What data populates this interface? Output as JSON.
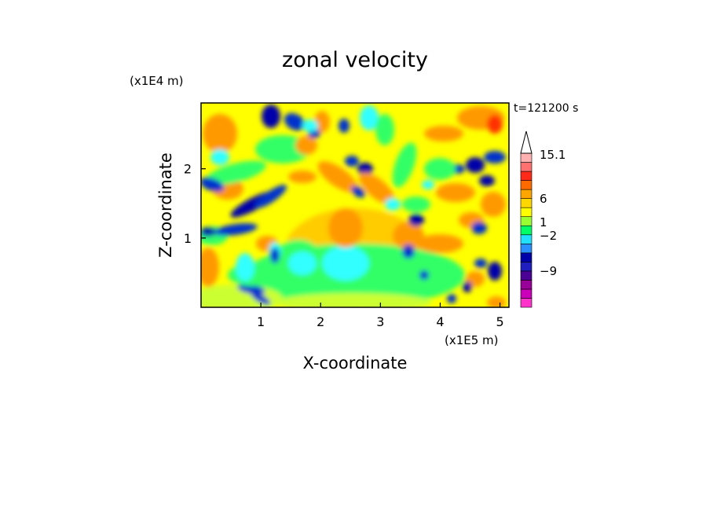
{
  "chart_data": {
    "type": "heatmap",
    "title": "zonal velocity",
    "xlabel": "X-coordinate",
    "ylabel": "Z-coordinate",
    "x_unit": "(x1E5 m)",
    "y_unit": "(x1E4 m)",
    "time_label": "t=121200 s",
    "x_ticks": [
      "1",
      "2",
      "3",
      "4",
      "5"
    ],
    "y_ticks": [
      "1",
      "2"
    ],
    "xlim": [
      0,
      5.15
    ],
    "ylim": [
      0,
      2.95
    ],
    "colorbar": {
      "labels": [
        "15.1",
        "6",
        "1",
        "-2",
        "-9"
      ],
      "levels": [
        {
          "color": "#ff33cc"
        },
        {
          "color": "#cc00bb"
        },
        {
          "color": "#990099"
        },
        {
          "color": "#4b0096"
        },
        {
          "color": "#1f1fbf"
        },
        {
          "color": "#0000aa"
        },
        {
          "color": "#2a8fff"
        },
        {
          "color": "#22e0ff"
        },
        {
          "color": "#00ff66"
        },
        {
          "color": "#99ff33"
        },
        {
          "color": "#ffff00"
        },
        {
          "color": "#ffd700"
        },
        {
          "color": "#ffa500"
        },
        {
          "color": "#ff6a00"
        },
        {
          "color": "#ff2a1a"
        },
        {
          "color": "#ff7070"
        },
        {
          "color": "#ffb0b0"
        }
      ]
    },
    "field": {
      "colors": {
        "yellow": "#ffff00",
        "gold": "#ffcc00",
        "orange": "#ff9900",
        "green": "#33ff66",
        "lime": "#ccff33",
        "cyan": "#33ffff",
        "blue": "#0033cc",
        "navy": "#0000aa",
        "red": "#ff3300"
      }
    }
  }
}
